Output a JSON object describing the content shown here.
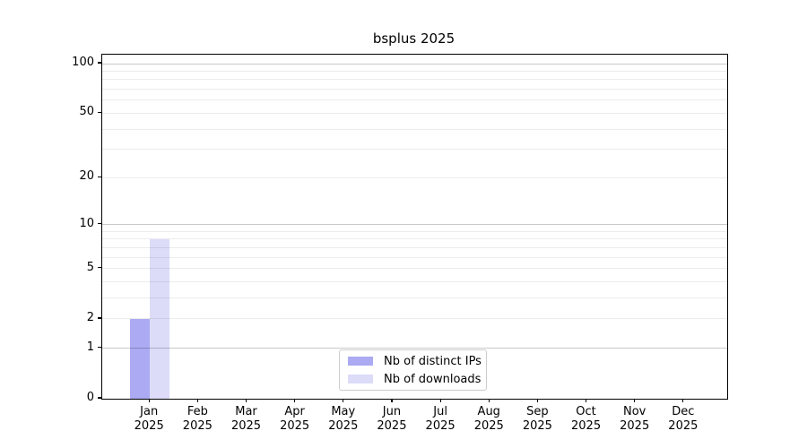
{
  "title": "bsplus 2025",
  "legend": {
    "items": [
      {
        "label": "Nb of distinct IPs",
        "color": "#abaaf2"
      },
      {
        "label": "Nb of downloads",
        "color": "#dcdcf8"
      }
    ]
  },
  "chart_data": {
    "type": "bar",
    "title": "bsplus 2025",
    "categories": [
      "Jan",
      "Feb",
      "Mar",
      "Apr",
      "May",
      "Jun",
      "Jul",
      "Aug",
      "Sep",
      "Oct",
      "Nov",
      "Dec"
    ],
    "year_label": "2025",
    "series": [
      {
        "name": "Nb of distinct IPs",
        "color": "#abaaf2",
        "values": [
          2,
          0,
          0,
          0,
          0,
          0,
          0,
          0,
          0,
          0,
          0,
          0
        ]
      },
      {
        "name": "Nb of downloads",
        "color": "#dcdcf8",
        "values": [
          8,
          0,
          0,
          0,
          0,
          0,
          0,
          0,
          0,
          0,
          0,
          0
        ]
      }
    ],
    "xlabel": "",
    "ylabel": "",
    "yscale": "log1p",
    "ylim": [
      0,
      113
    ],
    "ytick_values": [
      0,
      1,
      2,
      5,
      10,
      20,
      50,
      100
    ],
    "ytick_labels": [
      "0",
      "1",
      "2",
      "5",
      "10",
      "20",
      "50",
      "100"
    ],
    "major_grid_values": [
      1,
      10,
      100
    ],
    "minor_grid_values": [
      2,
      3,
      4,
      5,
      6,
      7,
      8,
      9,
      20,
      30,
      40,
      50,
      60,
      70,
      80,
      90
    ],
    "grid": true,
    "legend_position": "lower center"
  },
  "colors": {
    "background": "#ffffff",
    "spine": "#000000",
    "major_grid": "#c9c9c9",
    "minor_grid": "#ececec",
    "text": "#000000",
    "legend_border": "#cccccc"
  }
}
